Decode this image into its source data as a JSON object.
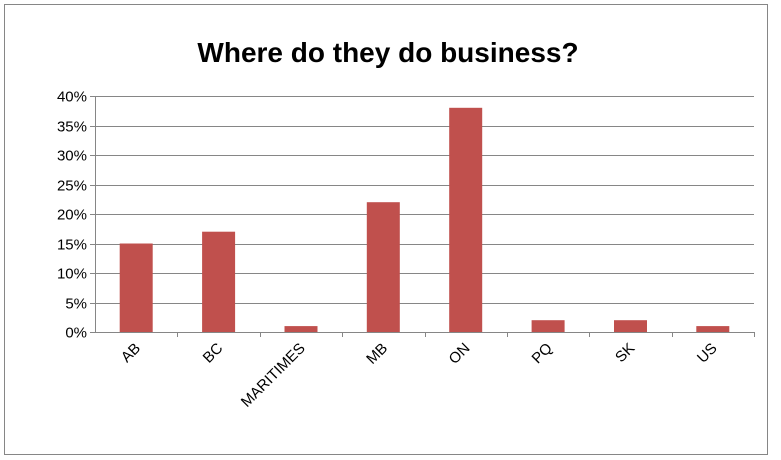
{
  "colors": {
    "bar": "#C0504D",
    "grid": "#868686",
    "axis": "#868686",
    "frame": "#868686"
  },
  "chart_data": {
    "type": "bar",
    "title": "Where do they do business?",
    "xlabel": "",
    "ylabel": "",
    "categories": [
      "AB",
      "BC",
      "MARITIMES",
      "MB",
      "ON",
      "PQ",
      "SK",
      "US"
    ],
    "values": [
      15,
      17,
      1,
      22,
      38,
      2,
      2,
      1
    ],
    "value_format": "percent",
    "ylim": [
      0,
      40
    ],
    "yticks": [
      0,
      5,
      10,
      15,
      20,
      25,
      30,
      35,
      40
    ],
    "ytick_labels": [
      "0%",
      "5%",
      "10%",
      "15%",
      "20%",
      "25%",
      "30%",
      "35%",
      "40%"
    ],
    "grid": true,
    "legend": "none"
  }
}
